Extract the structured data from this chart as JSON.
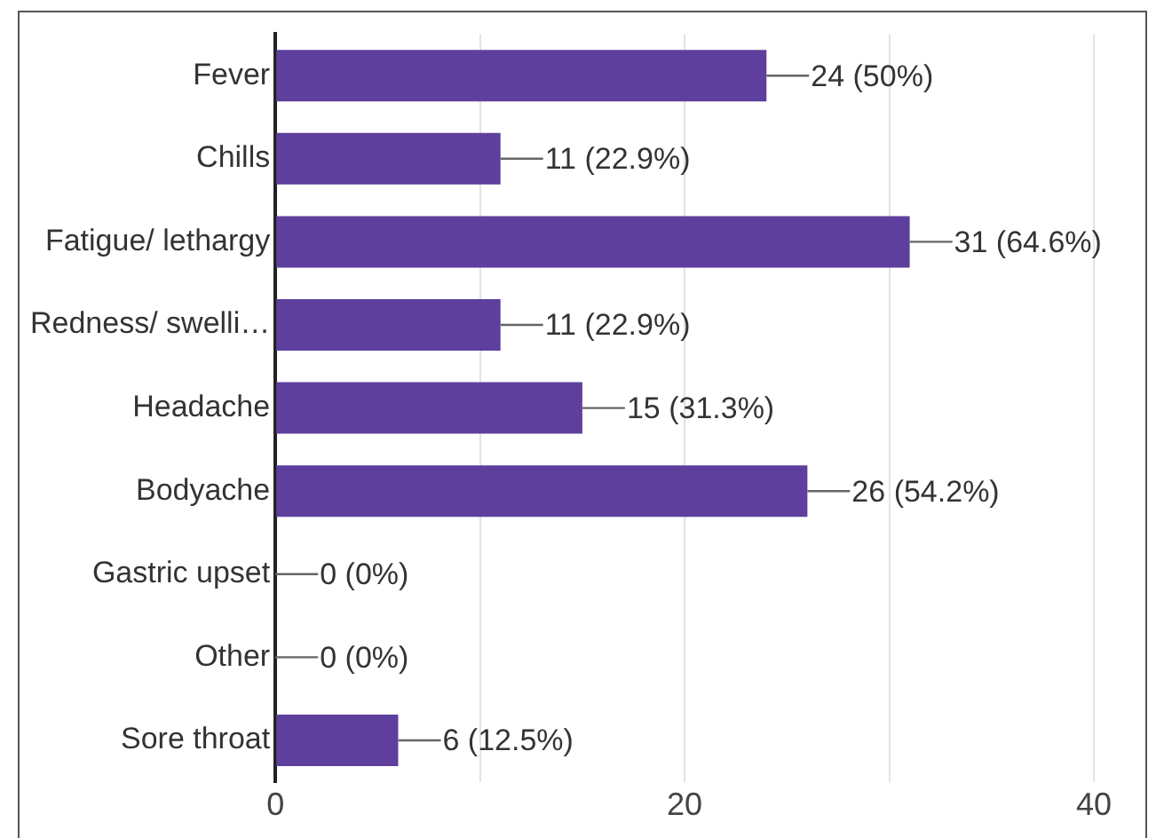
{
  "chart_data": {
    "type": "bar",
    "orientation": "horizontal",
    "categories": [
      "Fever",
      "Chills",
      "Fatigue/ lethargy",
      "Redness/ swelli…",
      "Headache",
      "Bodyache",
      "Gastric upset",
      "Other",
      "Sore throat"
    ],
    "values": [
      24,
      11,
      31,
      11,
      15,
      26,
      0,
      0,
      6
    ],
    "value_labels": [
      "24 (50%)",
      "11 (22.9%)",
      "31 (64.6%)",
      "11 (22.9%)",
      "15 (31.3%)",
      "26 (54.2%)",
      "0 (0%)",
      "0 (0%)",
      "6 (12.5%)"
    ],
    "color": "#5e3f9e",
    "xlim": [
      0,
      40
    ],
    "xticks": [
      0,
      {
        "value": 10,
        "label": null
      },
      20,
      {
        "value": 30,
        "label": null
      },
      40
    ],
    "grid": "x",
    "legend": false
  }
}
